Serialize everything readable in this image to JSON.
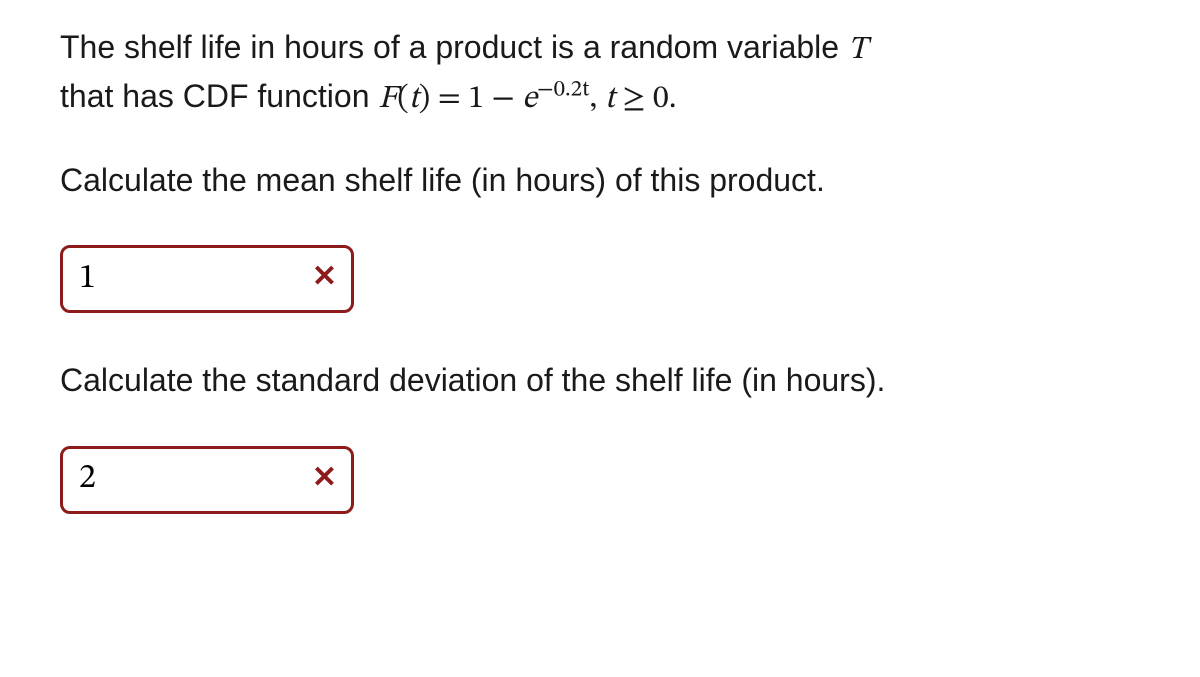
{
  "colors": {
    "incorrect_border": "#8e1b1b",
    "incorrect_icon": "#8e1b1b",
    "text": "#1a1a1a"
  },
  "problem": {
    "intro_prefix": "The shelf life in hours of a product is a random variable ",
    "var_T": "T",
    "intro_line2_prefix": "that has CDF function ",
    "cdf_F": "F",
    "cdf_open": "(",
    "cdf_arg": "t",
    "cdf_close": ")",
    "eq": " = 1 − ",
    "e_base": "e",
    "exp_text": "−0.2t",
    "comma": ",  ",
    "domain_t": "t",
    "domain_rel": " ≥ 0.",
    "q1": "Calculate the mean shelf life (in hours) of this product.",
    "q2": "Calculate the standard deviation of the shelf life (in hours)."
  },
  "answers": {
    "a1": {
      "value": "1",
      "correct": false
    },
    "a2": {
      "value": "2",
      "correct": false
    }
  },
  "icons": {
    "wrong": "✕"
  }
}
